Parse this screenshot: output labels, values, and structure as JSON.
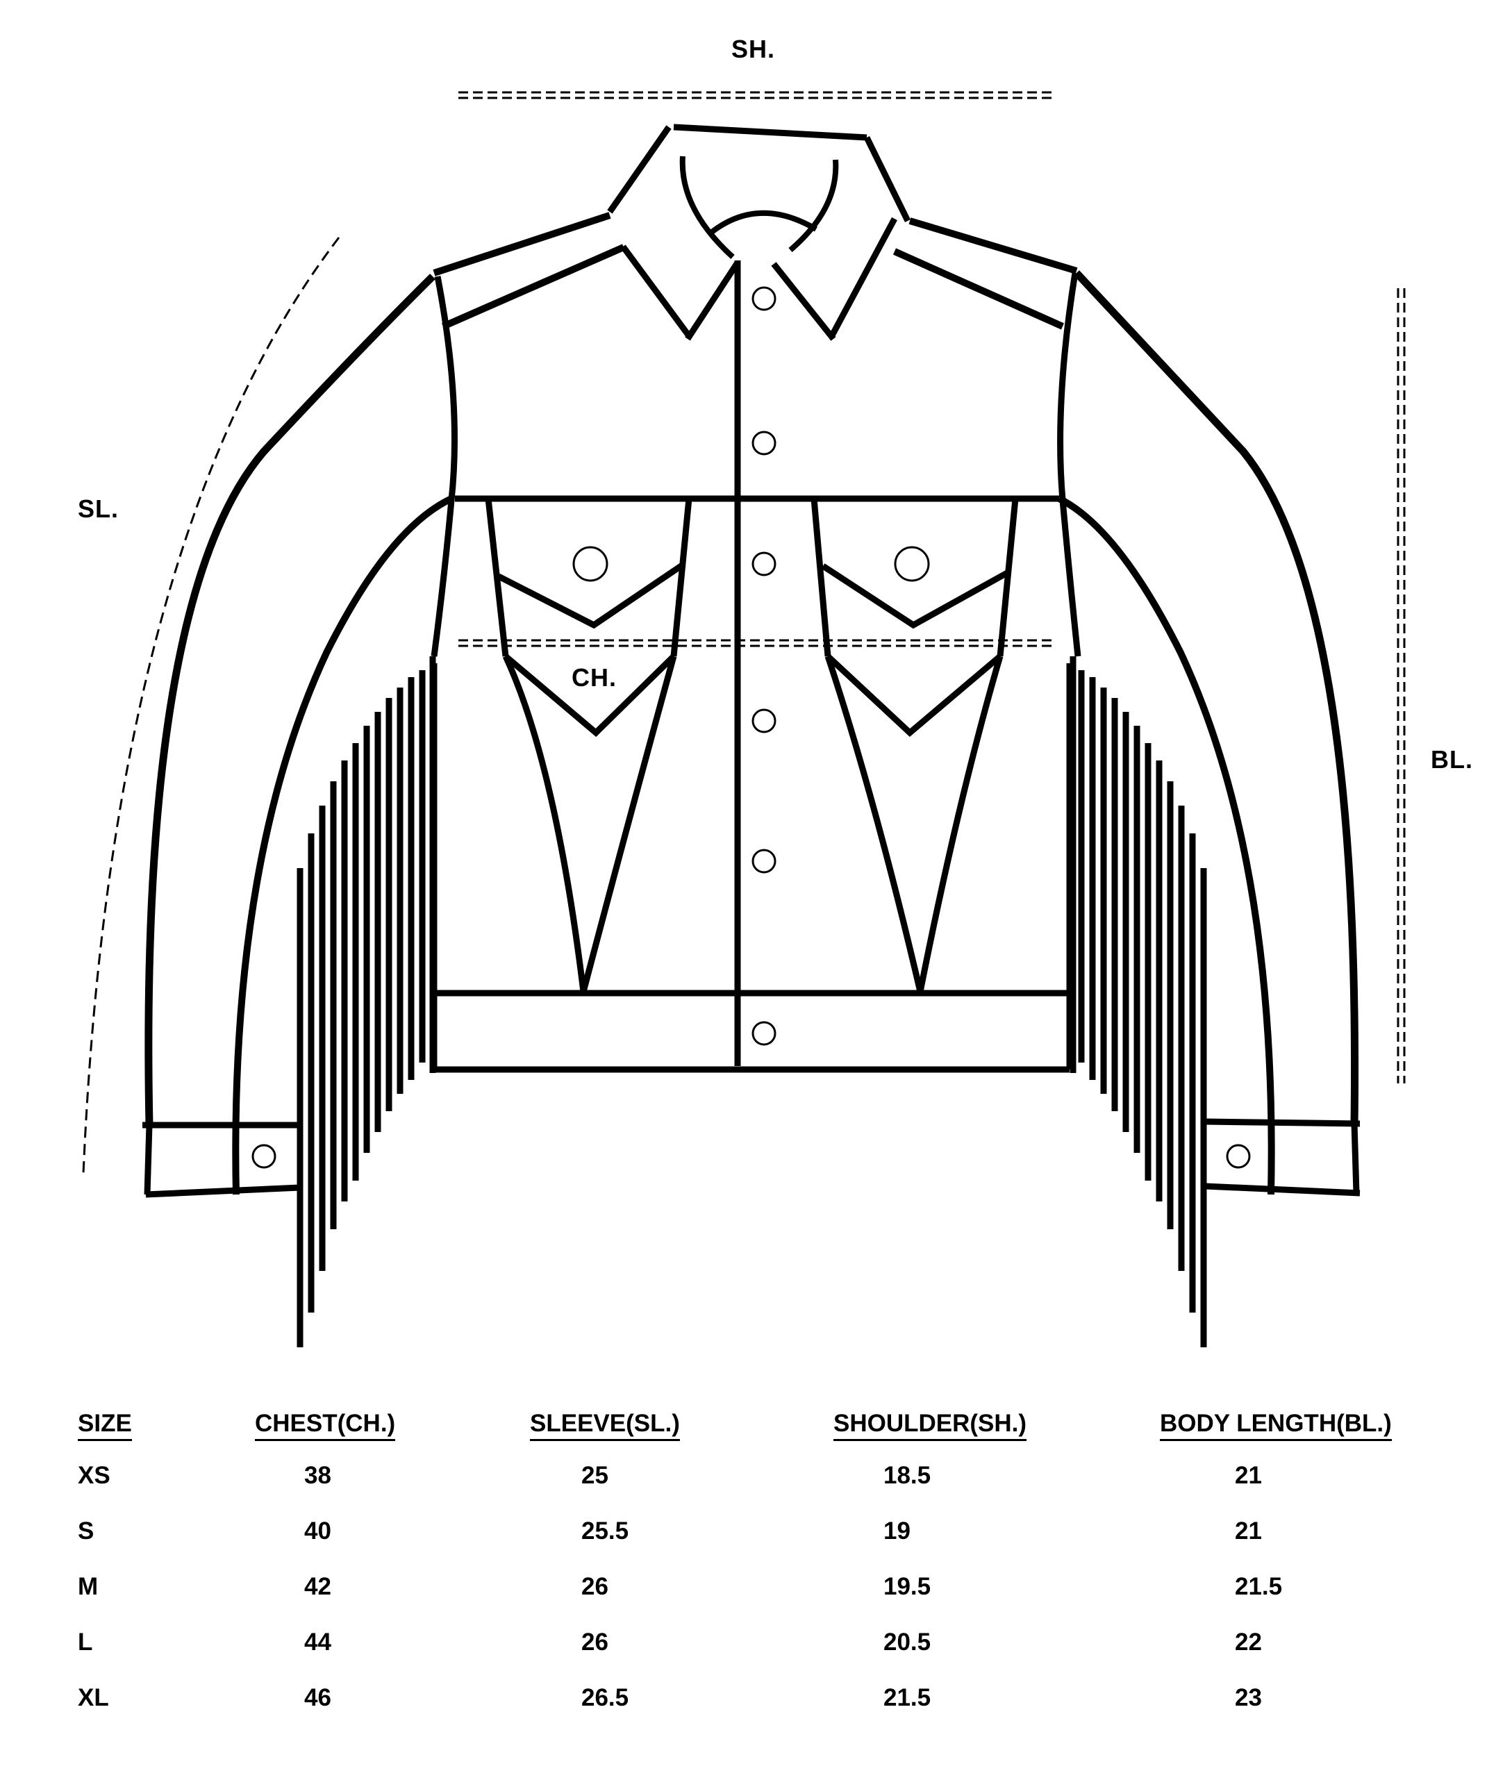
{
  "labels": {
    "shoulder": "SH.",
    "sleeve": "SL.",
    "chest": "CH.",
    "body_length": "BL."
  },
  "table": {
    "headers": [
      "SIZE",
      "CHEST(CH.)",
      "SLEEVE(SL.)",
      "SHOULDER(SH.)",
      "BODY LENGTH(BL.)"
    ],
    "rows": [
      [
        "XS",
        "38",
        "25",
        "18.5",
        "21"
      ],
      [
        "S",
        "40",
        "25.5",
        "19",
        "21"
      ],
      [
        "M",
        "42",
        "26",
        "19.5",
        "21.5"
      ],
      [
        "L",
        "44",
        "26",
        "20.5",
        "22"
      ],
      [
        "XL",
        "46",
        "26.5",
        "21.5",
        "23"
      ]
    ]
  }
}
